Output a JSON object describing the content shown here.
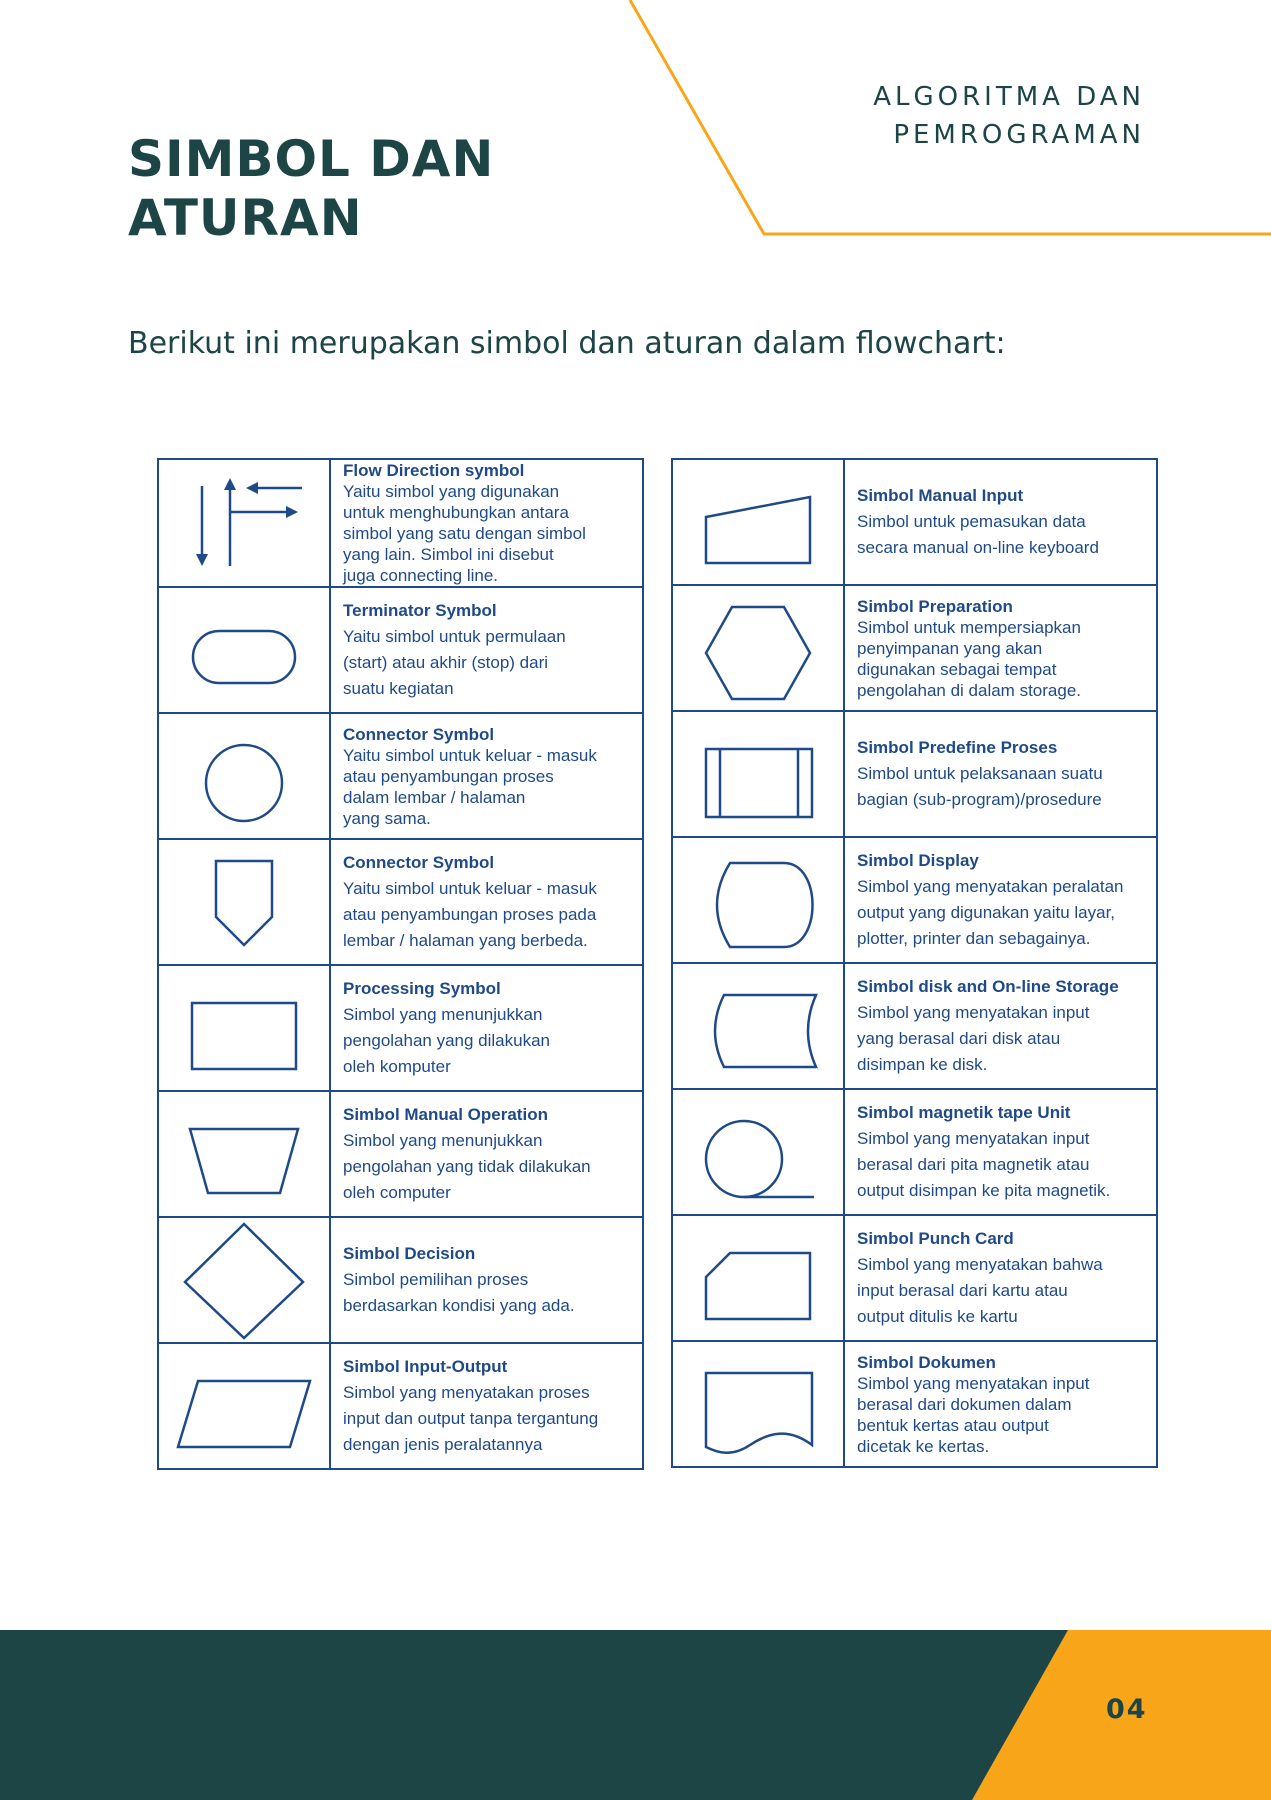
{
  "header": {
    "subject_line1": "ALGORITMA DAN",
    "subject_line2": "PEMROGRAMAN",
    "title_line1": "SIMBOL DAN",
    "title_line2": "ATURAN"
  },
  "intro": "Berikut ini merupakan simbol dan aturan dalam flowchart:",
  "symbols_left": [
    {
      "icon": "flow-direction-icon",
      "name": "Flow Direction symbol",
      "lines": [
        "Yaitu simbol yang digunakan",
        "untuk menghubungkan antara",
        "simbol yang satu dengan simbol",
        "yang lain. Simbol ini disebut",
        "juga connecting line."
      ]
    },
    {
      "icon": "terminator-icon",
      "name": "Terminator Symbol",
      "lines": [
        "Yaitu simbol untuk permulaan",
        "(start) atau akhir (stop) dari",
        "suatu kegiatan"
      ]
    },
    {
      "icon": "connector-circle-icon",
      "name": "Connector Symbol",
      "lines": [
        "Yaitu simbol untuk keluar - masuk",
        "atau penyambungan proses",
        "dalam lembar / halaman",
        "yang sama."
      ]
    },
    {
      "icon": "off-page-connector-icon",
      "name": "Connector Symbol",
      "lines": [
        "Yaitu simbol untuk keluar - masuk",
        "atau penyambungan proses pada",
        "lembar / halaman yang berbeda."
      ]
    },
    {
      "icon": "process-rectangle-icon",
      "name": "Processing Symbol",
      "lines": [
        "Simbol yang menunjukkan",
        "pengolahan yang dilakukan",
        "oleh komputer"
      ]
    },
    {
      "icon": "manual-operation-icon",
      "name": "Simbol Manual Operation",
      "lines": [
        "Simbol yang menunjukkan",
        "pengolahan yang tidak dilakukan",
        "oleh computer"
      ]
    },
    {
      "icon": "decision-diamond-icon",
      "name": "Simbol Decision",
      "lines": [
        "Simbol pemilihan proses",
        "berdasarkan kondisi yang ada."
      ]
    },
    {
      "icon": "input-output-icon",
      "name": "Simbol Input-Output",
      "lines": [
        "Simbol yang menyatakan proses",
        "input dan output tanpa tergantung",
        "dengan jenis peralatannya"
      ]
    }
  ],
  "symbols_right": [
    {
      "icon": "manual-input-icon",
      "name": "Simbol Manual Input",
      "lines": [
        "Simbol untuk pemasukan data",
        "secara manual on-line keyboard"
      ]
    },
    {
      "icon": "preparation-hexagon-icon",
      "name": "Simbol Preparation",
      "lines": [
        "Simbol untuk mempersiapkan",
        "penyimpanan yang akan",
        "digunakan sebagai tempat",
        "pengolahan di dalam storage."
      ]
    },
    {
      "icon": "predefined-process-icon",
      "name": "Simbol Predefine Proses",
      "lines": [
        "Simbol untuk pelaksanaan suatu",
        "bagian (sub-program)/prosedure"
      ]
    },
    {
      "icon": "display-icon",
      "name": "Simbol Display",
      "lines": [
        "Simbol yang menyatakan peralatan",
        "output yang digunakan yaitu layar,",
        "plotter, printer dan sebagainya."
      ]
    },
    {
      "icon": "disk-storage-icon",
      "name": "Simbol disk and On-line Storage",
      "lines": [
        "Simbol yang menyatakan input",
        "yang berasal dari disk atau",
        "disimpan ke disk."
      ]
    },
    {
      "icon": "magnetic-tape-icon",
      "name": "Simbol magnetik tape Unit",
      "lines": [
        "Simbol yang menyatakan input",
        "berasal dari pita magnetik atau",
        "output disimpan ke pita magnetik."
      ]
    },
    {
      "icon": "punch-card-icon",
      "name": "Simbol Punch Card",
      "lines": [
        "Simbol yang menyatakan bahwa",
        "input berasal dari kartu atau",
        "output ditulis ke kartu"
      ]
    },
    {
      "icon": "document-icon",
      "name": "Simbol Dokumen",
      "lines": [
        "Simbol yang menyatakan input",
        "berasal dari dokumen dalam",
        "bentuk  kertas atau output",
        "dicetak ke kertas."
      ]
    }
  ],
  "page_number": "04",
  "colors": {
    "dark_teal": "#1d4546",
    "orange": "#f9a51a",
    "symbol_blue": "#1f4a87"
  }
}
